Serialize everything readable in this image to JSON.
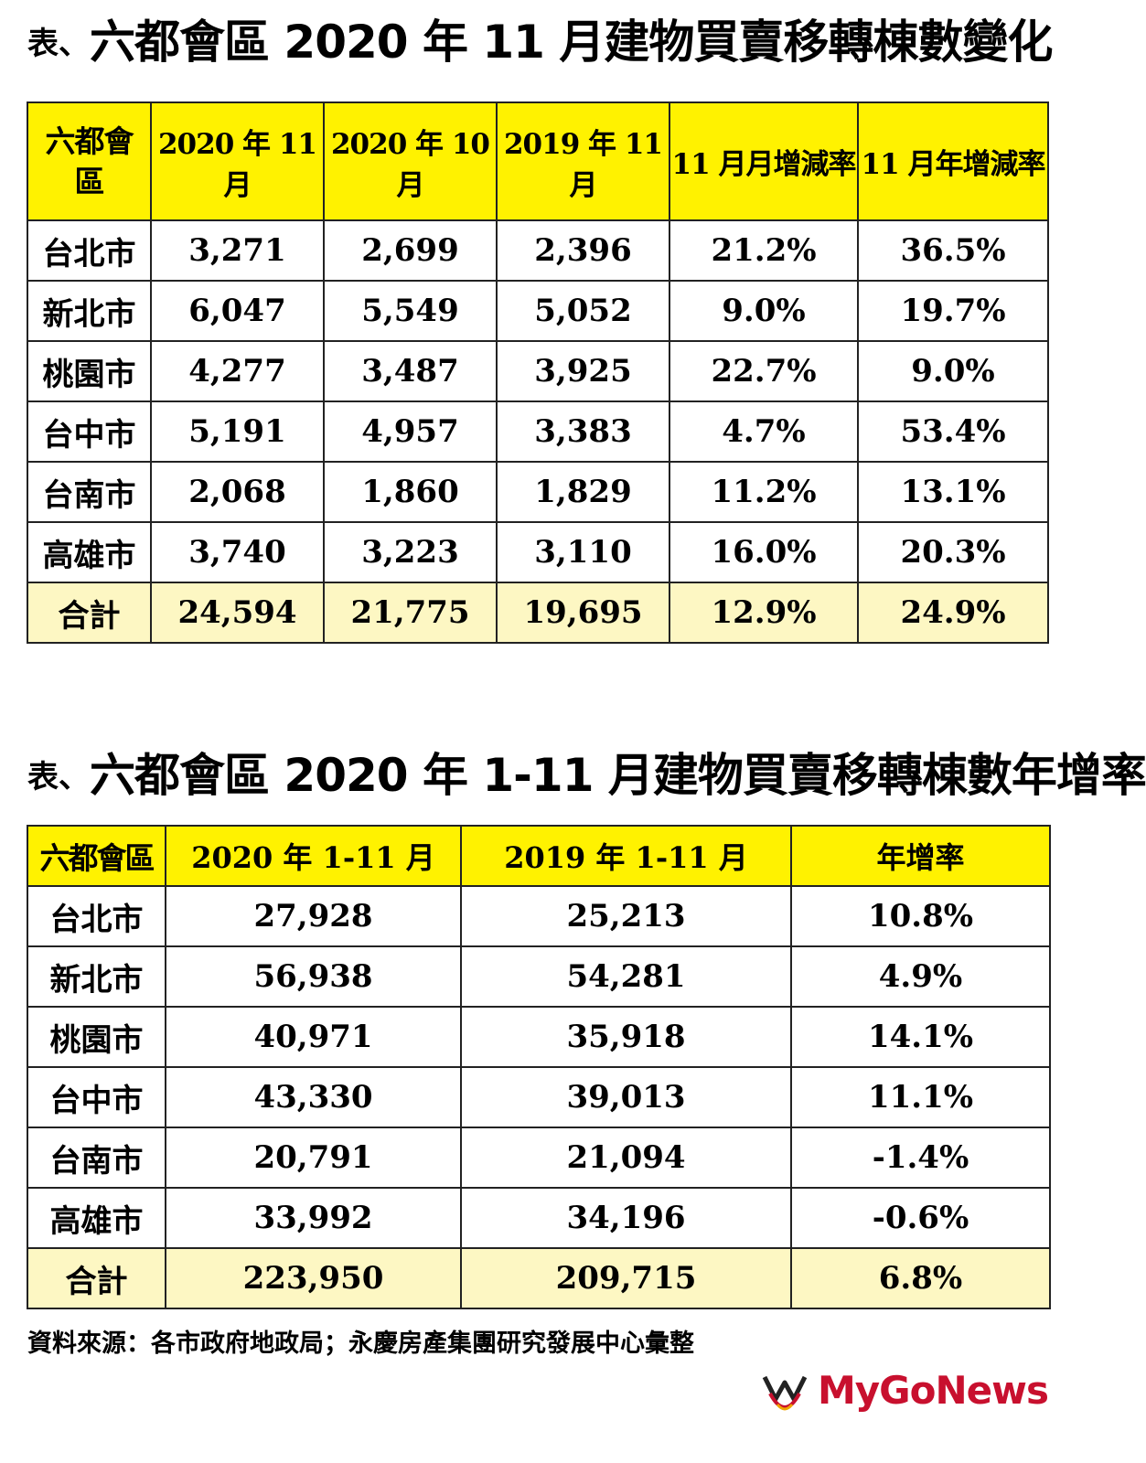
{
  "table1": {
    "title_prefix": "表、",
    "title_main": "六都會區 2020 年 11 月建物買賣移轉棟數變化",
    "headers": [
      "六都會區",
      "2020 年 11 月",
      "2020 年 10 月",
      "2019 年 11 月",
      "11 月月增減率",
      "11 月年增減率"
    ],
    "rows": [
      [
        "台北市",
        "3,271",
        "2,699",
        "2,396",
        "21.2%",
        "36.5%"
      ],
      [
        "新北市",
        "6,047",
        "5,549",
        "5,052",
        "9.0%",
        "19.7%"
      ],
      [
        "桃園市",
        "4,277",
        "3,487",
        "3,925",
        "22.7%",
        "9.0%"
      ],
      [
        "台中市",
        "5,191",
        "4,957",
        "3,383",
        "4.7%",
        "53.4%"
      ],
      [
        "台南市",
        "2,068",
        "1,860",
        "1,829",
        "11.2%",
        "13.1%"
      ],
      [
        "高雄市",
        "3,740",
        "3,223",
        "3,110",
        "16.0%",
        "20.3%"
      ]
    ],
    "total": [
      "合計",
      "24,594",
      "21,775",
      "19,695",
      "12.9%",
      "24.9%"
    ]
  },
  "table2": {
    "title_prefix": "表、",
    "title_main": "六都會區 2020 年 1-11 月建物買賣移轉棟數年增率",
    "headers": [
      "六都會區",
      "2020 年 1-11 月",
      "2019 年 1-11 月",
      "年增率"
    ],
    "rows": [
      [
        "台北市",
        "27,928",
        "25,213",
        "10.8%"
      ],
      [
        "新北市",
        "56,938",
        "54,281",
        "4.9%"
      ],
      [
        "桃園市",
        "40,971",
        "35,918",
        "14.1%"
      ],
      [
        "台中市",
        "43,330",
        "39,013",
        "11.1%"
      ],
      [
        "台南市",
        "20,791",
        "21,094",
        "-1.4%"
      ],
      [
        "高雄市",
        "33,992",
        "34,196",
        "-0.6%"
      ]
    ],
    "total": [
      "合計",
      "223,950",
      "209,715",
      "6.8%"
    ]
  },
  "source": "資料來源：各市政府地政局；永慶房產集團研究發展中心彙整",
  "logo": {
    "brand": "MyGoNews",
    "icon": "mygonews-logo-icon"
  },
  "colors": {
    "header_bg": "#fff200",
    "total_bg": "#fdf7c3",
    "brand": "#c8102e"
  }
}
